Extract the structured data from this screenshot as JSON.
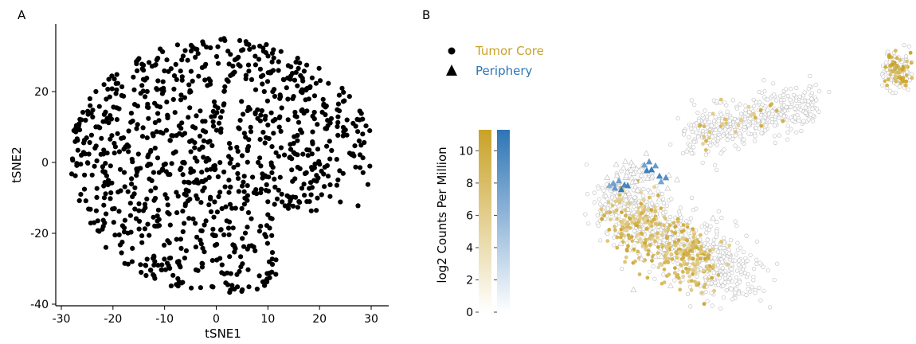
{
  "panels": {
    "a_label": "A",
    "b_label": "B"
  },
  "colors": {
    "tumor": "#C9A227",
    "periphery": "#2E75B6",
    "point_a": "#000000",
    "bg_point": "#BDBDBD"
  },
  "chart_data": [
    {
      "type": "scatter",
      "panel": "A",
      "title": "",
      "xlabel": "tSNE1",
      "ylabel": "tSNE2",
      "xlim": [
        -31,
        33
      ],
      "ylim": [
        -41,
        38
      ],
      "xticks": [
        -30,
        -20,
        -10,
        0,
        10,
        20,
        30
      ],
      "yticks": [
        -40,
        -20,
        0,
        20
      ],
      "xtick_labels": [
        "-30",
        "-20",
        "-10",
        "0",
        "10",
        "20",
        "30"
      ],
      "ytick_labels": [
        "-40",
        "-20",
        "0",
        "20"
      ],
      "grid": false,
      "point_count": 1000,
      "cloud": {
        "center": [
          2,
          -2
        ],
        "x_range": [
          -28,
          30
        ],
        "y_range": [
          -37,
          36
        ],
        "shape": "roughly circular cloud, denser on left, indented lower-right"
      }
    },
    {
      "type": "scatter",
      "panel": "B",
      "title": "",
      "xlabel": "",
      "ylabel": "",
      "legend": {
        "position": "top-left",
        "entries": [
          {
            "label": "Tumor Core",
            "shape": "circle",
            "color": "#C9A227"
          },
          {
            "label": "Periphery",
            "shape": "triangle",
            "color": "#2E75B6"
          }
        ]
      },
      "colorbar": {
        "label": "log2 Counts Per Million",
        "range": [
          0,
          11.3
        ],
        "ticks": [
          0,
          2,
          4,
          6,
          8,
          10
        ],
        "tick_labels": [
          "0",
          "2",
          "4",
          "6",
          "8",
          "10"
        ],
        "tumor_gradient": [
          "#FFFFFF",
          "#C9A227"
        ],
        "periphery_gradient": [
          "#FFFFFF",
          "#2E75B6"
        ]
      },
      "clusters": [
        {
          "name": "top-right",
          "group": "tumor",
          "highlighted_fraction": 0.65
        },
        {
          "name": "upper-middle",
          "group": "tumor",
          "highlighted_fraction": 0.08
        },
        {
          "name": "lower-left",
          "group": "tumor",
          "highlighted_fraction": 0.45
        },
        {
          "name": "upper-left",
          "group": "periphery",
          "highlighted_fraction": 0.5
        }
      ]
    }
  ]
}
